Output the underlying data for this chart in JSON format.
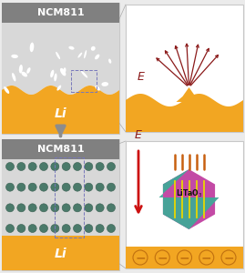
{
  "fig_w": 2.69,
  "fig_h": 3.0,
  "dpi": 100,
  "bg": "#ebebeb",
  "panel_bg": "#ffffff",
  "panel_border": "#c8c8c8",
  "header_bg": "#808080",
  "header_text": "NCM811",
  "header_fc": "#ffffff",
  "elec_color": "#d8d8d8",
  "li_color": "#f2a622",
  "li_text": "Li",
  "dot_color": "#4a7a6a",
  "dot_edge": "#3a5f52",
  "dendrite_color": "#8b1a1a",
  "E_color": "#8b1a1a",
  "arrow_between": "#8c8c8c",
  "zoom_line_color": "#aaaaaa",
  "zoom_box_color": "#7777bb",
  "inset_border": "#c8c8c8",
  "hex_magenta": "#c040a0",
  "hex_teal": "#40a898",
  "yellow_line": "#e8d800",
  "spike_color": "#c86010",
  "li_circle_edge": "#c07010",
  "minus_color": "#c07010"
}
